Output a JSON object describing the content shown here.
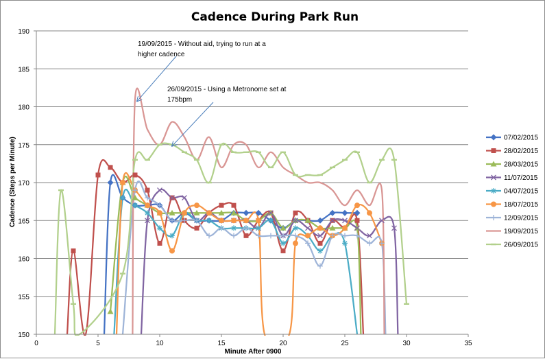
{
  "chart_data": {
    "type": "line",
    "title": "Cadence During Park Run",
    "xlabel": "Minute After 0900",
    "ylabel": "Cadence (Steps per Minute)",
    "xlim": [
      0,
      35
    ],
    "ylim": [
      150,
      190
    ],
    "xticks": [
      "0",
      "5",
      "10",
      "15",
      "20",
      "25",
      "30",
      "35"
    ],
    "yticks": [
      "150",
      "155",
      "160",
      "165",
      "170",
      "175",
      "180",
      "185",
      "190"
    ],
    "grid": "horizontal",
    "legend_position": "right",
    "series": [
      {
        "name": "07/02/2015",
        "color": "#4472c4",
        "marker": "diamond",
        "x": [
          5.5,
          6,
          7,
          8,
          9,
          10,
          11,
          12,
          13,
          14,
          15,
          16,
          17,
          18,
          19,
          20,
          21,
          22,
          23,
          24,
          25,
          26
        ],
        "y": [
          150,
          170,
          168,
          167,
          167,
          167,
          165,
          166,
          165,
          165,
          165,
          166,
          166,
          166,
          165,
          164,
          165,
          165,
          165,
          166,
          166,
          166
        ]
      },
      {
        "name": "28/02/2015",
        "color": "#c0504d",
        "marker": "square",
        "x": [
          2.5,
          3,
          4,
          5,
          6,
          7,
          8,
          9,
          10,
          11,
          12,
          13,
          14,
          15,
          16,
          17,
          18,
          19,
          20,
          21,
          22,
          23,
          24,
          25,
          26,
          26.5
        ],
        "y": [
          150,
          161,
          150,
          171,
          172,
          170,
          171,
          169,
          162,
          168,
          165,
          164,
          166,
          167,
          167,
          163,
          165,
          166,
          161,
          166,
          165,
          162,
          165,
          164,
          165,
          150
        ]
      },
      {
        "name": "28/03/2015",
        "color": "#9bbb59",
        "marker": "triangle",
        "x": [
          6,
          7,
          8,
          9,
          10,
          11,
          12,
          13,
          14,
          15,
          16,
          17,
          18,
          19,
          20,
          21,
          22,
          23,
          24,
          25,
          26,
          26.3
        ],
        "y": [
          153,
          170,
          168,
          167,
          166,
          166,
          166,
          166,
          166,
          166,
          166,
          165,
          165,
          166,
          164,
          165,
          165,
          164,
          164,
          164,
          164,
          150
        ]
      },
      {
        "name": "11/07/2015",
        "color": "#8064a2",
        "marker": "x",
        "x": [
          8.5,
          9,
          10,
          11,
          12,
          13,
          14,
          15,
          16,
          17,
          18,
          19,
          20,
          21,
          22,
          23,
          24,
          25,
          26,
          27,
          28,
          29,
          29.3
        ],
        "y": [
          150,
          165,
          169,
          168,
          168,
          165,
          166,
          165,
          165,
          165,
          164,
          166,
          163,
          165,
          164,
          163,
          165,
          165,
          164,
          163,
          165,
          164,
          150
        ]
      },
      {
        "name": "04/07/2015",
        "color": "#4bacc6",
        "marker": "star",
        "x": [
          6.3,
          7,
          8,
          9,
          10,
          11,
          12,
          13,
          14,
          15,
          16,
          17,
          18,
          19,
          20,
          21,
          22,
          23,
          24,
          25,
          26
        ],
        "y": [
          150,
          168,
          167,
          166,
          164,
          163,
          166,
          165,
          165,
          164,
          164,
          164,
          164,
          165,
          162,
          164,
          163,
          161,
          163,
          162,
          150
        ]
      },
      {
        "name": "18/07/2015",
        "color": "#f79646",
        "marker": "circle",
        "x": [
          6.5,
          7,
          8,
          9,
          10,
          11,
          12,
          13,
          14,
          15,
          16,
          17,
          18,
          18.5,
          20.5,
          21,
          22,
          23,
          24,
          25,
          26,
          27,
          28
        ],
        "y": [
          150,
          170,
          169,
          167,
          166,
          161,
          166,
          167,
          166,
          165,
          165,
          165,
          165,
          150,
          150,
          162,
          163,
          164,
          163,
          164,
          167,
          166,
          162
        ]
      },
      {
        "name": "12/09/2015",
        "color": "#9eb4d8",
        "marker": "plus",
        "x": [
          7,
          8,
          9,
          10,
          11,
          12,
          13,
          14,
          15,
          16,
          17,
          18,
          19,
          20,
          21,
          22,
          23,
          24,
          25,
          26,
          27,
          28,
          28.3
        ],
        "y": [
          150,
          169,
          168,
          167,
          165,
          165,
          165,
          163,
          164,
          163,
          164,
          163,
          163,
          163,
          163,
          162,
          159,
          163,
          163,
          163,
          162,
          162,
          150
        ]
      },
      {
        "name": "19/09/2015",
        "color": "#d99694",
        "marker": "none",
        "x": [
          7.8,
          8,
          9,
          10,
          11,
          12,
          13,
          14,
          15,
          16,
          17,
          18,
          19,
          20,
          21,
          22,
          23,
          24,
          25,
          26,
          27,
          28,
          28.2
        ],
        "y": [
          150,
          181,
          177,
          175,
          178,
          176,
          173,
          176,
          172,
          175,
          175,
          172,
          174,
          172,
          171,
          170,
          170,
          169,
          167,
          169,
          167,
          169,
          150
        ]
      },
      {
        "name": "26/09/2015",
        "color": "#b2d08c",
        "marker": "dash",
        "x": [
          1.5,
          2,
          3,
          3.5,
          7,
          8,
          9,
          10,
          11,
          12,
          13,
          14,
          15,
          16,
          17,
          18,
          19,
          20,
          21,
          22,
          23,
          24,
          25,
          26,
          27,
          28,
          29,
          30
        ],
        "y": [
          150,
          169,
          154,
          150,
          158,
          173,
          173,
          175,
          175,
          174,
          173,
          170,
          175,
          174,
          174,
          174,
          172,
          174,
          171,
          171,
          171,
          172,
          173,
          174,
          170,
          173,
          173,
          154
        ]
      }
    ],
    "annotations": [
      {
        "lines": [
          "19/09/2015 - Without aid, trying to run at a",
          "higher cadence"
        ],
        "points_to": {
          "x": 8,
          "y": 181
        }
      },
      {
        "lines": [
          "26/09/2015 - Using a Metronome set at",
          "175bpm"
        ],
        "points_to": {
          "x": 11,
          "y": 175
        }
      }
    ]
  }
}
